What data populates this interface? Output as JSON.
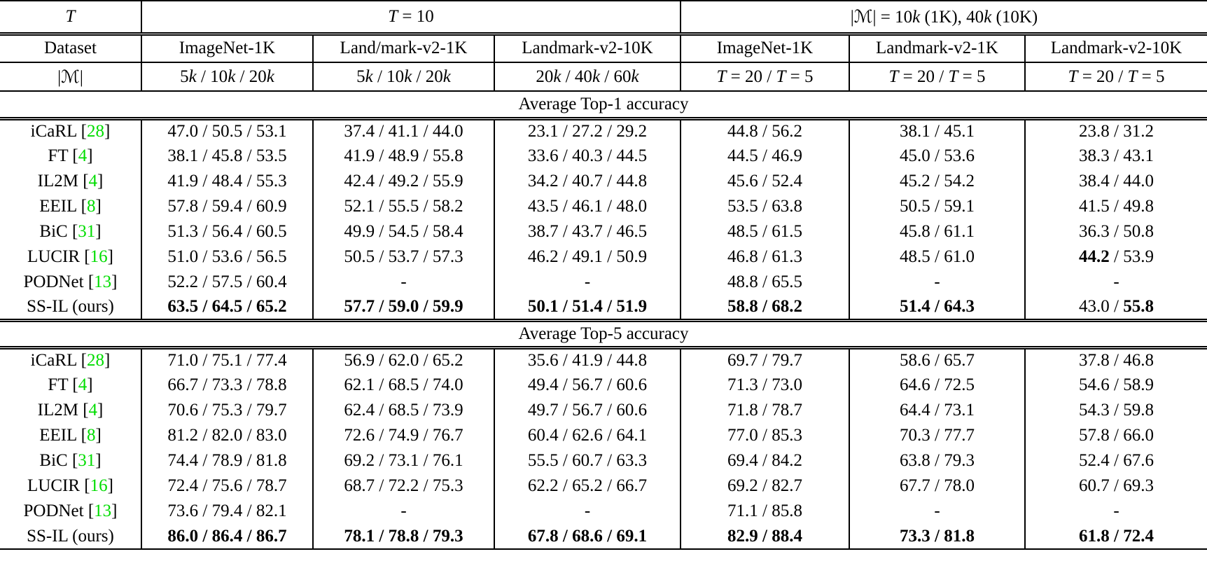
{
  "colors": {
    "citation_green": "#00dd00"
  },
  "table": {
    "header": {
      "row1": [
        {
          "colspan": 1,
          "segs": [
            {
              "t": "T",
              "i": true
            }
          ]
        },
        {
          "colspan": 3,
          "segs": [
            {
              "t": "T",
              "i": true
            },
            {
              "t": " = 10"
            }
          ]
        },
        {
          "colspan": 3,
          "segs": [
            {
              "t": "|ℳ| = 10"
            },
            {
              "t": "k",
              "i": true
            },
            {
              "t": " (1K), 40"
            },
            {
              "t": "k",
              "i": true
            },
            {
              "t": " (10K)"
            }
          ]
        }
      ],
      "row2": [
        {
          "segs": [
            {
              "t": "Dataset"
            }
          ]
        },
        {
          "segs": [
            {
              "t": "ImageNet-1K"
            }
          ]
        },
        {
          "segs": [
            {
              "t": "Land/mark-v2-1K"
            }
          ]
        },
        {
          "segs": [
            {
              "t": "Landmark-v2-10K"
            }
          ]
        },
        {
          "segs": [
            {
              "t": "ImageNet-1K"
            }
          ]
        },
        {
          "segs": [
            {
              "t": "Landmark-v2-1K"
            }
          ]
        },
        {
          "segs": [
            {
              "t": "Landmark-v2-10K"
            }
          ]
        }
      ],
      "row3": [
        {
          "segs": [
            {
              "t": "|ℳ|"
            }
          ]
        },
        {
          "segs": [
            {
              "t": "5"
            },
            {
              "t": "k",
              "i": true
            },
            {
              "t": " / 10"
            },
            {
              "t": "k",
              "i": true
            },
            {
              "t": " / 20"
            },
            {
              "t": "k",
              "i": true
            }
          ]
        },
        {
          "segs": [
            {
              "t": "5"
            },
            {
              "t": "k",
              "i": true
            },
            {
              "t": " / 10"
            },
            {
              "t": "k",
              "i": true
            },
            {
              "t": " / 20"
            },
            {
              "t": "k",
              "i": true
            }
          ]
        },
        {
          "segs": [
            {
              "t": "20"
            },
            {
              "t": "k",
              "i": true
            },
            {
              "t": " / 40"
            },
            {
              "t": "k",
              "i": true
            },
            {
              "t": " / 60"
            },
            {
              "t": "k",
              "i": true
            }
          ]
        },
        {
          "segs": [
            {
              "t": "T",
              "i": true
            },
            {
              "t": " = 20 / "
            },
            {
              "t": "T",
              "i": true
            },
            {
              "t": " = 5"
            }
          ]
        },
        {
          "segs": [
            {
              "t": "T",
              "i": true
            },
            {
              "t": " = 20 / "
            },
            {
              "t": "T",
              "i": true
            },
            {
              "t": " = 5"
            }
          ]
        },
        {
          "segs": [
            {
              "t": "T",
              "i": true
            },
            {
              "t": " = 20 / "
            },
            {
              "t": "T",
              "i": true
            },
            {
              "t": " = 5"
            }
          ]
        }
      ]
    },
    "sections": [
      {
        "title": "Average Top-1 accuracy",
        "rows": [
          {
            "method": "iCaRL",
            "cite": "28",
            "cells": [
              [
                {
                  "t": "47.0 / 50.5 / 53.1"
                }
              ],
              [
                {
                  "t": "37.4 / 41.1 / 44.0"
                }
              ],
              [
                {
                  "t": "23.1 / 27.2 / 29.2"
                }
              ],
              [
                {
                  "t": "44.8 / 56.2"
                }
              ],
              [
                {
                  "t": "38.1 / 45.1"
                }
              ],
              [
                {
                  "t": "23.8 / 31.2"
                }
              ]
            ]
          },
          {
            "method": "FT",
            "cite": "4",
            "cells": [
              [
                {
                  "t": "38.1 / 45.8 / 53.5"
                }
              ],
              [
                {
                  "t": "41.9 / 48.9 / 55.8"
                }
              ],
              [
                {
                  "t": "33.6 / 40.3 / 44.5"
                }
              ],
              [
                {
                  "t": "44.5 / 46.9"
                }
              ],
              [
                {
                  "t": "45.0 / 53.6"
                }
              ],
              [
                {
                  "t": "38.3 / 43.1"
                }
              ]
            ]
          },
          {
            "method": "IL2M",
            "cite": "4",
            "cells": [
              [
                {
                  "t": "41.9 / 48.4 / 55.3"
                }
              ],
              [
                {
                  "t": "42.4 / 49.2 / 55.9"
                }
              ],
              [
                {
                  "t": "34.2 / 40.7 / 44.8"
                }
              ],
              [
                {
                  "t": "45.6 / 52.4"
                }
              ],
              [
                {
                  "t": "45.2 / 54.2"
                }
              ],
              [
                {
                  "t": "38.4 / 44.0"
                }
              ]
            ]
          },
          {
            "method": "EEIL",
            "cite": "8",
            "cells": [
              [
                {
                  "t": "57.8 / 59.4 / 60.9"
                }
              ],
              [
                {
                  "t": "52.1 / 55.5 / 58.2"
                }
              ],
              [
                {
                  "t": "43.5 / 46.1 / 48.0"
                }
              ],
              [
                {
                  "t": "53.5 / 63.8"
                }
              ],
              [
                {
                  "t": "50.5 / 59.1"
                }
              ],
              [
                {
                  "t": "41.5 / 49.8"
                }
              ]
            ]
          },
          {
            "method": "BiC",
            "cite": "31",
            "cells": [
              [
                {
                  "t": "51.3 / 56.4 / 60.5"
                }
              ],
              [
                {
                  "t": "49.9 / 54.5 / 58.4"
                }
              ],
              [
                {
                  "t": "38.7 / 43.7 / 46.5"
                }
              ],
              [
                {
                  "t": "48.5 / 61.5"
                }
              ],
              [
                {
                  "t": "45.8 / 61.1"
                }
              ],
              [
                {
                  "t": "36.3 / 50.8"
                }
              ]
            ]
          },
          {
            "method": "LUCIR",
            "cite": "16",
            "cells": [
              [
                {
                  "t": "51.0 / 53.6 / 56.5"
                }
              ],
              [
                {
                  "t": "50.5 / 53.7 / 57.3"
                }
              ],
              [
                {
                  "t": "46.2 / 49.1 / 50.9"
                }
              ],
              [
                {
                  "t": "46.8 / 61.3"
                }
              ],
              [
                {
                  "t": "48.5 / 61.0"
                }
              ],
              [
                {
                  "t": "44.2",
                  "b": true
                },
                {
                  "t": " / 53.9"
                }
              ]
            ]
          },
          {
            "method": "PODNet",
            "cite": "13",
            "cells": [
              [
                {
                  "t": "52.2 / 57.5 / 60.4"
                }
              ],
              [
                {
                  "t": "-"
                }
              ],
              [
                {
                  "t": "-"
                }
              ],
              [
                {
                  "t": "48.8 / 65.5"
                }
              ],
              [
                {
                  "t": "-"
                }
              ],
              [
                {
                  "t": "-"
                }
              ]
            ]
          },
          {
            "method": "SS-IL (ours)",
            "cite": null,
            "cells": [
              [
                {
                  "t": "63.5 / 64.5 / 65.2",
                  "b": true
                }
              ],
              [
                {
                  "t": "57.7 / 59.0 / 59.9",
                  "b": true
                }
              ],
              [
                {
                  "t": "50.1 / 51.4 / 51.9",
                  "b": true
                }
              ],
              [
                {
                  "t": "58.8 / 68.2",
                  "b": true
                }
              ],
              [
                {
                  "t": "51.4 / 64.3",
                  "b": true
                }
              ],
              [
                {
                  "t": "43.0 / "
                },
                {
                  "t": "55.8",
                  "b": true
                }
              ]
            ]
          }
        ]
      },
      {
        "title": "Average Top-5 accuracy",
        "rows": [
          {
            "method": "iCaRL",
            "cite": "28",
            "cells": [
              [
                {
                  "t": "71.0 / 75.1 / 77.4"
                }
              ],
              [
                {
                  "t": "56.9 / 62.0 / 65.2"
                }
              ],
              [
                {
                  "t": "35.6 / 41.9 / 44.8"
                }
              ],
              [
                {
                  "t": "69.7 / 79.7"
                }
              ],
              [
                {
                  "t": "58.6 / 65.7"
                }
              ],
              [
                {
                  "t": "37.8 / 46.8"
                }
              ]
            ]
          },
          {
            "method": "FT",
            "cite": "4",
            "cells": [
              [
                {
                  "t": "66.7 / 73.3 / 78.8"
                }
              ],
              [
                {
                  "t": "62.1 / 68.5 / 74.0"
                }
              ],
              [
                {
                  "t": "49.4 / 56.7 / 60.6"
                }
              ],
              [
                {
                  "t": "71.3 / 73.0"
                }
              ],
              [
                {
                  "t": "64.6 / 72.5"
                }
              ],
              [
                {
                  "t": "54.6 / 58.9"
                }
              ]
            ]
          },
          {
            "method": "IL2M",
            "cite": "4",
            "cells": [
              [
                {
                  "t": "70.6 / 75.3 / 79.7"
                }
              ],
              [
                {
                  "t": "62.4 / 68.5 / 73.9"
                }
              ],
              [
                {
                  "t": "49.7 / 56.7 / 60.6"
                }
              ],
              [
                {
                  "t": "71.8 / 78.7"
                }
              ],
              [
                {
                  "t": "64.4 / 73.1"
                }
              ],
              [
                {
                  "t": "54.3 / 59.8"
                }
              ]
            ]
          },
          {
            "method": "EEIL",
            "cite": "8",
            "cells": [
              [
                {
                  "t": "81.2 / 82.0 / 83.0"
                }
              ],
              [
                {
                  "t": "72.6 / 74.9 / 76.7"
                }
              ],
              [
                {
                  "t": "60.4 / 62.6 / 64.1"
                }
              ],
              [
                {
                  "t": "77.0 / 85.3"
                }
              ],
              [
                {
                  "t": "70.3 / 77.7"
                }
              ],
              [
                {
                  "t": "57.8 / 66.0"
                }
              ]
            ]
          },
          {
            "method": "BiC",
            "cite": "31",
            "cells": [
              [
                {
                  "t": "74.4 / 78.9 / 81.8"
                }
              ],
              [
                {
                  "t": "69.2 / 73.1 / 76.1"
                }
              ],
              [
                {
                  "t": "55.5 / 60.7 / 63.3"
                }
              ],
              [
                {
                  "t": "69.4 / 84.2"
                }
              ],
              [
                {
                  "t": "63.8 / 79.3"
                }
              ],
              [
                {
                  "t": "52.4 / 67.6"
                }
              ]
            ]
          },
          {
            "method": "LUCIR",
            "cite": "16",
            "cells": [
              [
                {
                  "t": "72.4 / 75.6 / 78.7"
                }
              ],
              [
                {
                  "t": "68.7 / 72.2 / 75.3"
                }
              ],
              [
                {
                  "t": "62.2 / 65.2 / 66.7"
                }
              ],
              [
                {
                  "t": "69.2 / 82.7"
                }
              ],
              [
                {
                  "t": "67.7 / 78.0"
                }
              ],
              [
                {
                  "t": "60.7 / 69.3"
                }
              ]
            ]
          },
          {
            "method": "PODNet",
            "cite": "13",
            "cells": [
              [
                {
                  "t": "73.6 / 79.4 / 82.1"
                }
              ],
              [
                {
                  "t": "-"
                }
              ],
              [
                {
                  "t": "-"
                }
              ],
              [
                {
                  "t": "71.1 / 85.8"
                }
              ],
              [
                {
                  "t": "-"
                }
              ],
              [
                {
                  "t": "-"
                }
              ]
            ]
          },
          {
            "method": "SS-IL (ours)",
            "cite": null,
            "cells": [
              [
                {
                  "t": "86.0 / 86.4 / 86.7",
                  "b": true
                }
              ],
              [
                {
                  "t": "78.1 / 78.8 / 79.3",
                  "b": true
                }
              ],
              [
                {
                  "t": "67.8 / 68.6 / 69.1",
                  "b": true
                }
              ],
              [
                {
                  "t": "82.9 / 88.4",
                  "b": true
                }
              ],
              [
                {
                  "t": "73.3 / 81.8",
                  "b": true
                }
              ],
              [
                {
                  "t": "61.8 / 72.4",
                  "b": true
                }
              ]
            ]
          }
        ]
      }
    ]
  }
}
